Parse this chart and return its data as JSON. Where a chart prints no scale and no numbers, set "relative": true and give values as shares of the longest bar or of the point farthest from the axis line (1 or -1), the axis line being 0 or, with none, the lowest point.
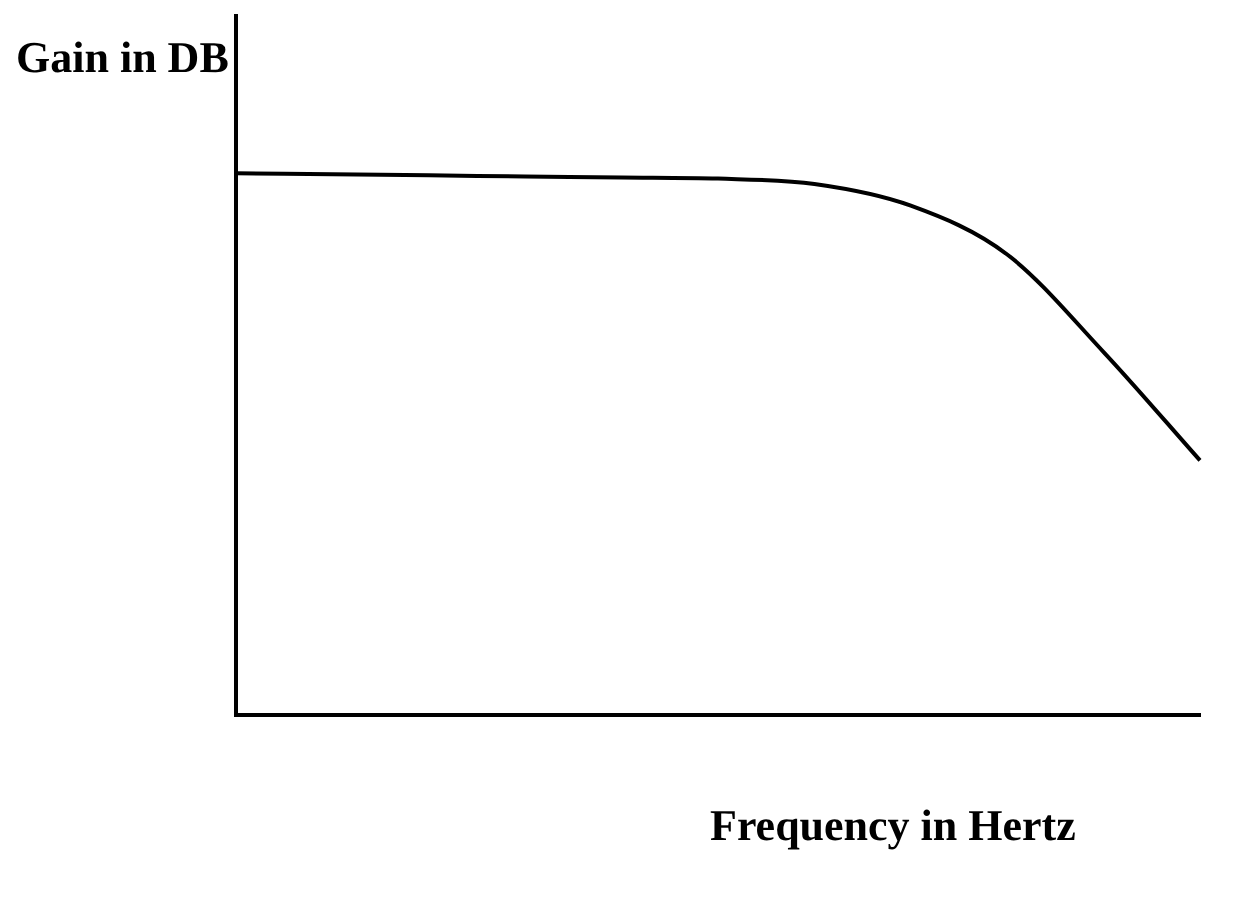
{
  "chart_data": {
    "type": "line",
    "relative": true,
    "ylabel": "Gain in DB",
    "xlabel": "Frequency in Hertz",
    "categories": [
      null,
      null,
      null,
      null,
      null,
      null,
      null,
      null,
      null,
      null,
      null
    ],
    "series": [
      {
        "color": "#000000",
        "values": [
          1.0,
          0.998,
          0.996,
          0.994,
          0.992,
          0.99,
          0.98,
          0.94,
          0.85,
          0.67,
          0.47
        ]
      }
    ],
    "grid": false,
    "legend": false,
    "marker": "none",
    "line_style": "solid"
  }
}
